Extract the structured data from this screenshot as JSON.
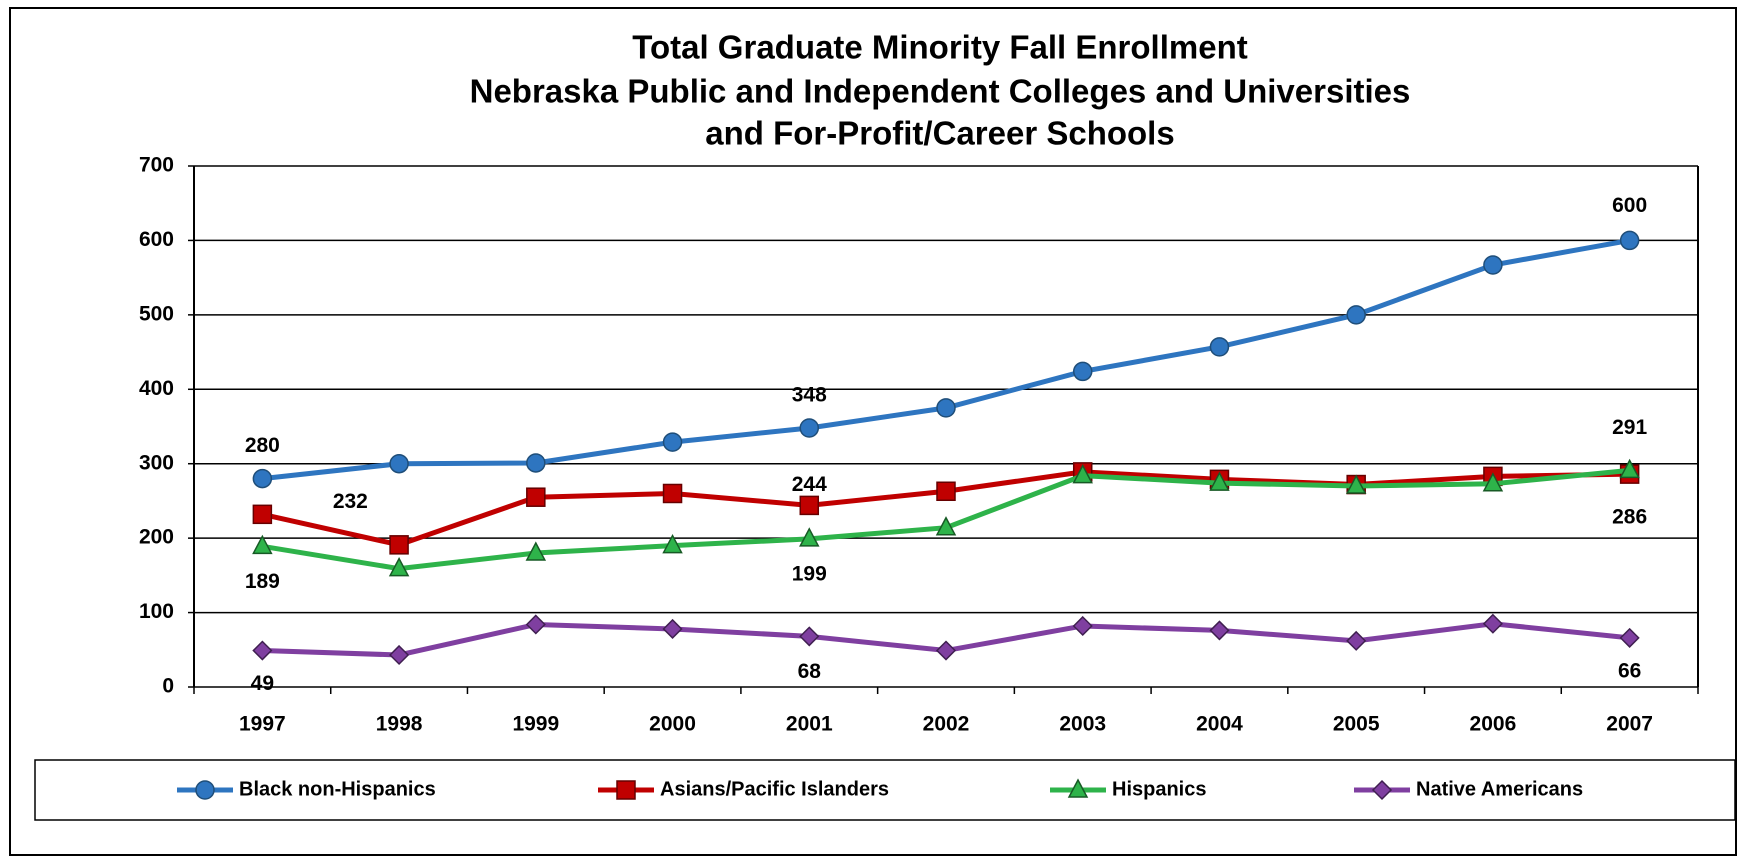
{
  "chart_data": {
    "type": "line",
    "title": [
      "Total Graduate Minority Fall Enrollment",
      "Nebraska Public and Independent Colleges and Universities",
      "and For-Profit/Career Schools"
    ],
    "categories": [
      "1997",
      "1998",
      "1999",
      "2000",
      "2001",
      "2002",
      "2003",
      "2004",
      "2005",
      "2006",
      "2007"
    ],
    "series": [
      {
        "name": "Black non-Hispanics",
        "color": "#2e75c0",
        "marker": "circle",
        "values": [
          280,
          300,
          301,
          329,
          348,
          375,
          424,
          457,
          500,
          567,
          600
        ],
        "value_labels": [
          "280",
          null,
          null,
          null,
          "348",
          null,
          null,
          null,
          null,
          null,
          "600"
        ]
      },
      {
        "name": "Asians/Pacific Islanders",
        "color": "#c00000",
        "marker": "square",
        "values": [
          232,
          191,
          255,
          260,
          244,
          263,
          289,
          279,
          272,
          283,
          286
        ],
        "value_labels": [
          "232",
          null,
          null,
          null,
          "244",
          null,
          null,
          null,
          null,
          null,
          "286"
        ]
      },
      {
        "name": "Hispanics",
        "color": "#2eb34a",
        "marker": "triangle",
        "values": [
          189,
          159,
          180,
          190,
          199,
          214,
          284,
          274,
          270,
          273,
          291
        ],
        "value_labels": [
          "189",
          null,
          null,
          null,
          "199",
          null,
          null,
          null,
          null,
          null,
          "291"
        ]
      },
      {
        "name": "Native Americans",
        "color": "#7f3fa0",
        "marker": "diamond",
        "values": [
          49,
          43,
          84,
          78,
          68,
          49,
          82,
          76,
          62,
          85,
          66
        ],
        "value_labels": [
          "49",
          null,
          null,
          null,
          "68",
          null,
          null,
          null,
          null,
          null,
          "66"
        ]
      }
    ],
    "ylim": [
      0,
      700
    ],
    "yticks": [
      0,
      100,
      200,
      300,
      400,
      500,
      600,
      700
    ],
    "grid": true,
    "legend": "bottom"
  }
}
